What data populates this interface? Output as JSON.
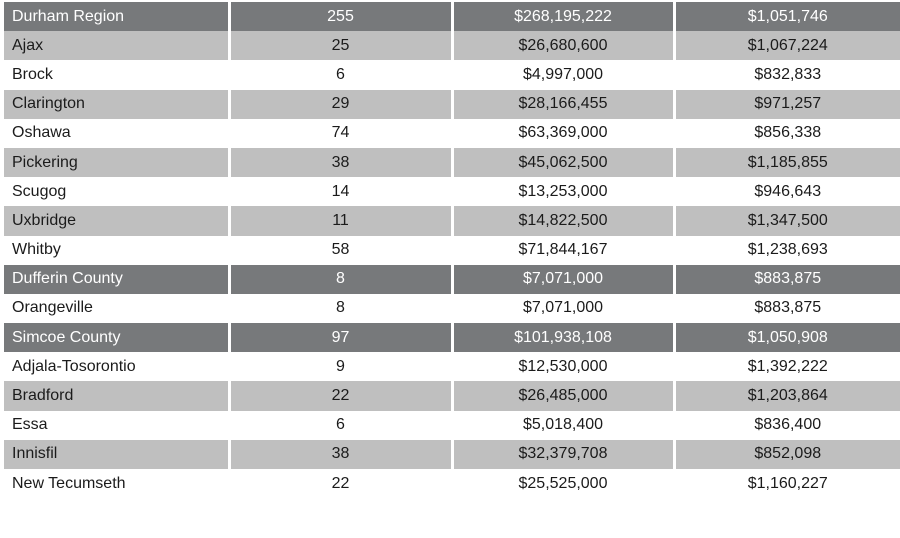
{
  "table": {
    "rows": [
      {
        "type": "region",
        "name": "Durham Region",
        "count": "255",
        "total": "$268,195,222",
        "average": "$1,051,746"
      },
      {
        "type": "shaded",
        "name": "Ajax",
        "count": "25",
        "total": "$26,680,600",
        "average": "$1,067,224"
      },
      {
        "type": "plain",
        "name": "Brock",
        "count": "6",
        "total": "$4,997,000",
        "average": "$832,833"
      },
      {
        "type": "shaded",
        "name": "Clarington",
        "count": "29",
        "total": "$28,166,455",
        "average": "$971,257"
      },
      {
        "type": "plain",
        "name": "Oshawa",
        "count": "74",
        "total": "$63,369,000",
        "average": "$856,338"
      },
      {
        "type": "shaded",
        "name": "Pickering",
        "count": "38",
        "total": "$45,062,500",
        "average": "$1,185,855"
      },
      {
        "type": "plain",
        "name": "Scugog",
        "count": "14",
        "total": "$13,253,000",
        "average": "$946,643"
      },
      {
        "type": "shaded",
        "name": "Uxbridge",
        "count": "11",
        "total": "$14,822,500",
        "average": "$1,347,500"
      },
      {
        "type": "plain",
        "name": "Whitby",
        "count": "58",
        "total": "$71,844,167",
        "average": "$1,238,693"
      },
      {
        "type": "region",
        "name": "Dufferin County",
        "count": "8",
        "total": "$7,071,000",
        "average": "$883,875"
      },
      {
        "type": "plain",
        "name": "Orangeville",
        "count": "8",
        "total": "$7,071,000",
        "average": "$883,875"
      },
      {
        "type": "region",
        "name": "Simcoe County",
        "count": "97",
        "total": "$101,938,108",
        "average": "$1,050,908"
      },
      {
        "type": "plain",
        "name": "Adjala-Tosorontio",
        "count": "9",
        "total": "$12,530,000",
        "average": "$1,392,222"
      },
      {
        "type": "shaded",
        "name": "Bradford",
        "count": "22",
        "total": "$26,485,000",
        "average": "$1,203,864"
      },
      {
        "type": "plain",
        "name": "Essa",
        "count": "6",
        "total": "$5,018,400",
        "average": "$836,400"
      },
      {
        "type": "shaded",
        "name": "Innisfil",
        "count": "38",
        "total": "$32,379,708",
        "average": "$852,098"
      },
      {
        "type": "plain",
        "name": "New Tecumseth",
        "count": "22",
        "total": "$25,525,000",
        "average": "$1,160,227"
      }
    ]
  }
}
